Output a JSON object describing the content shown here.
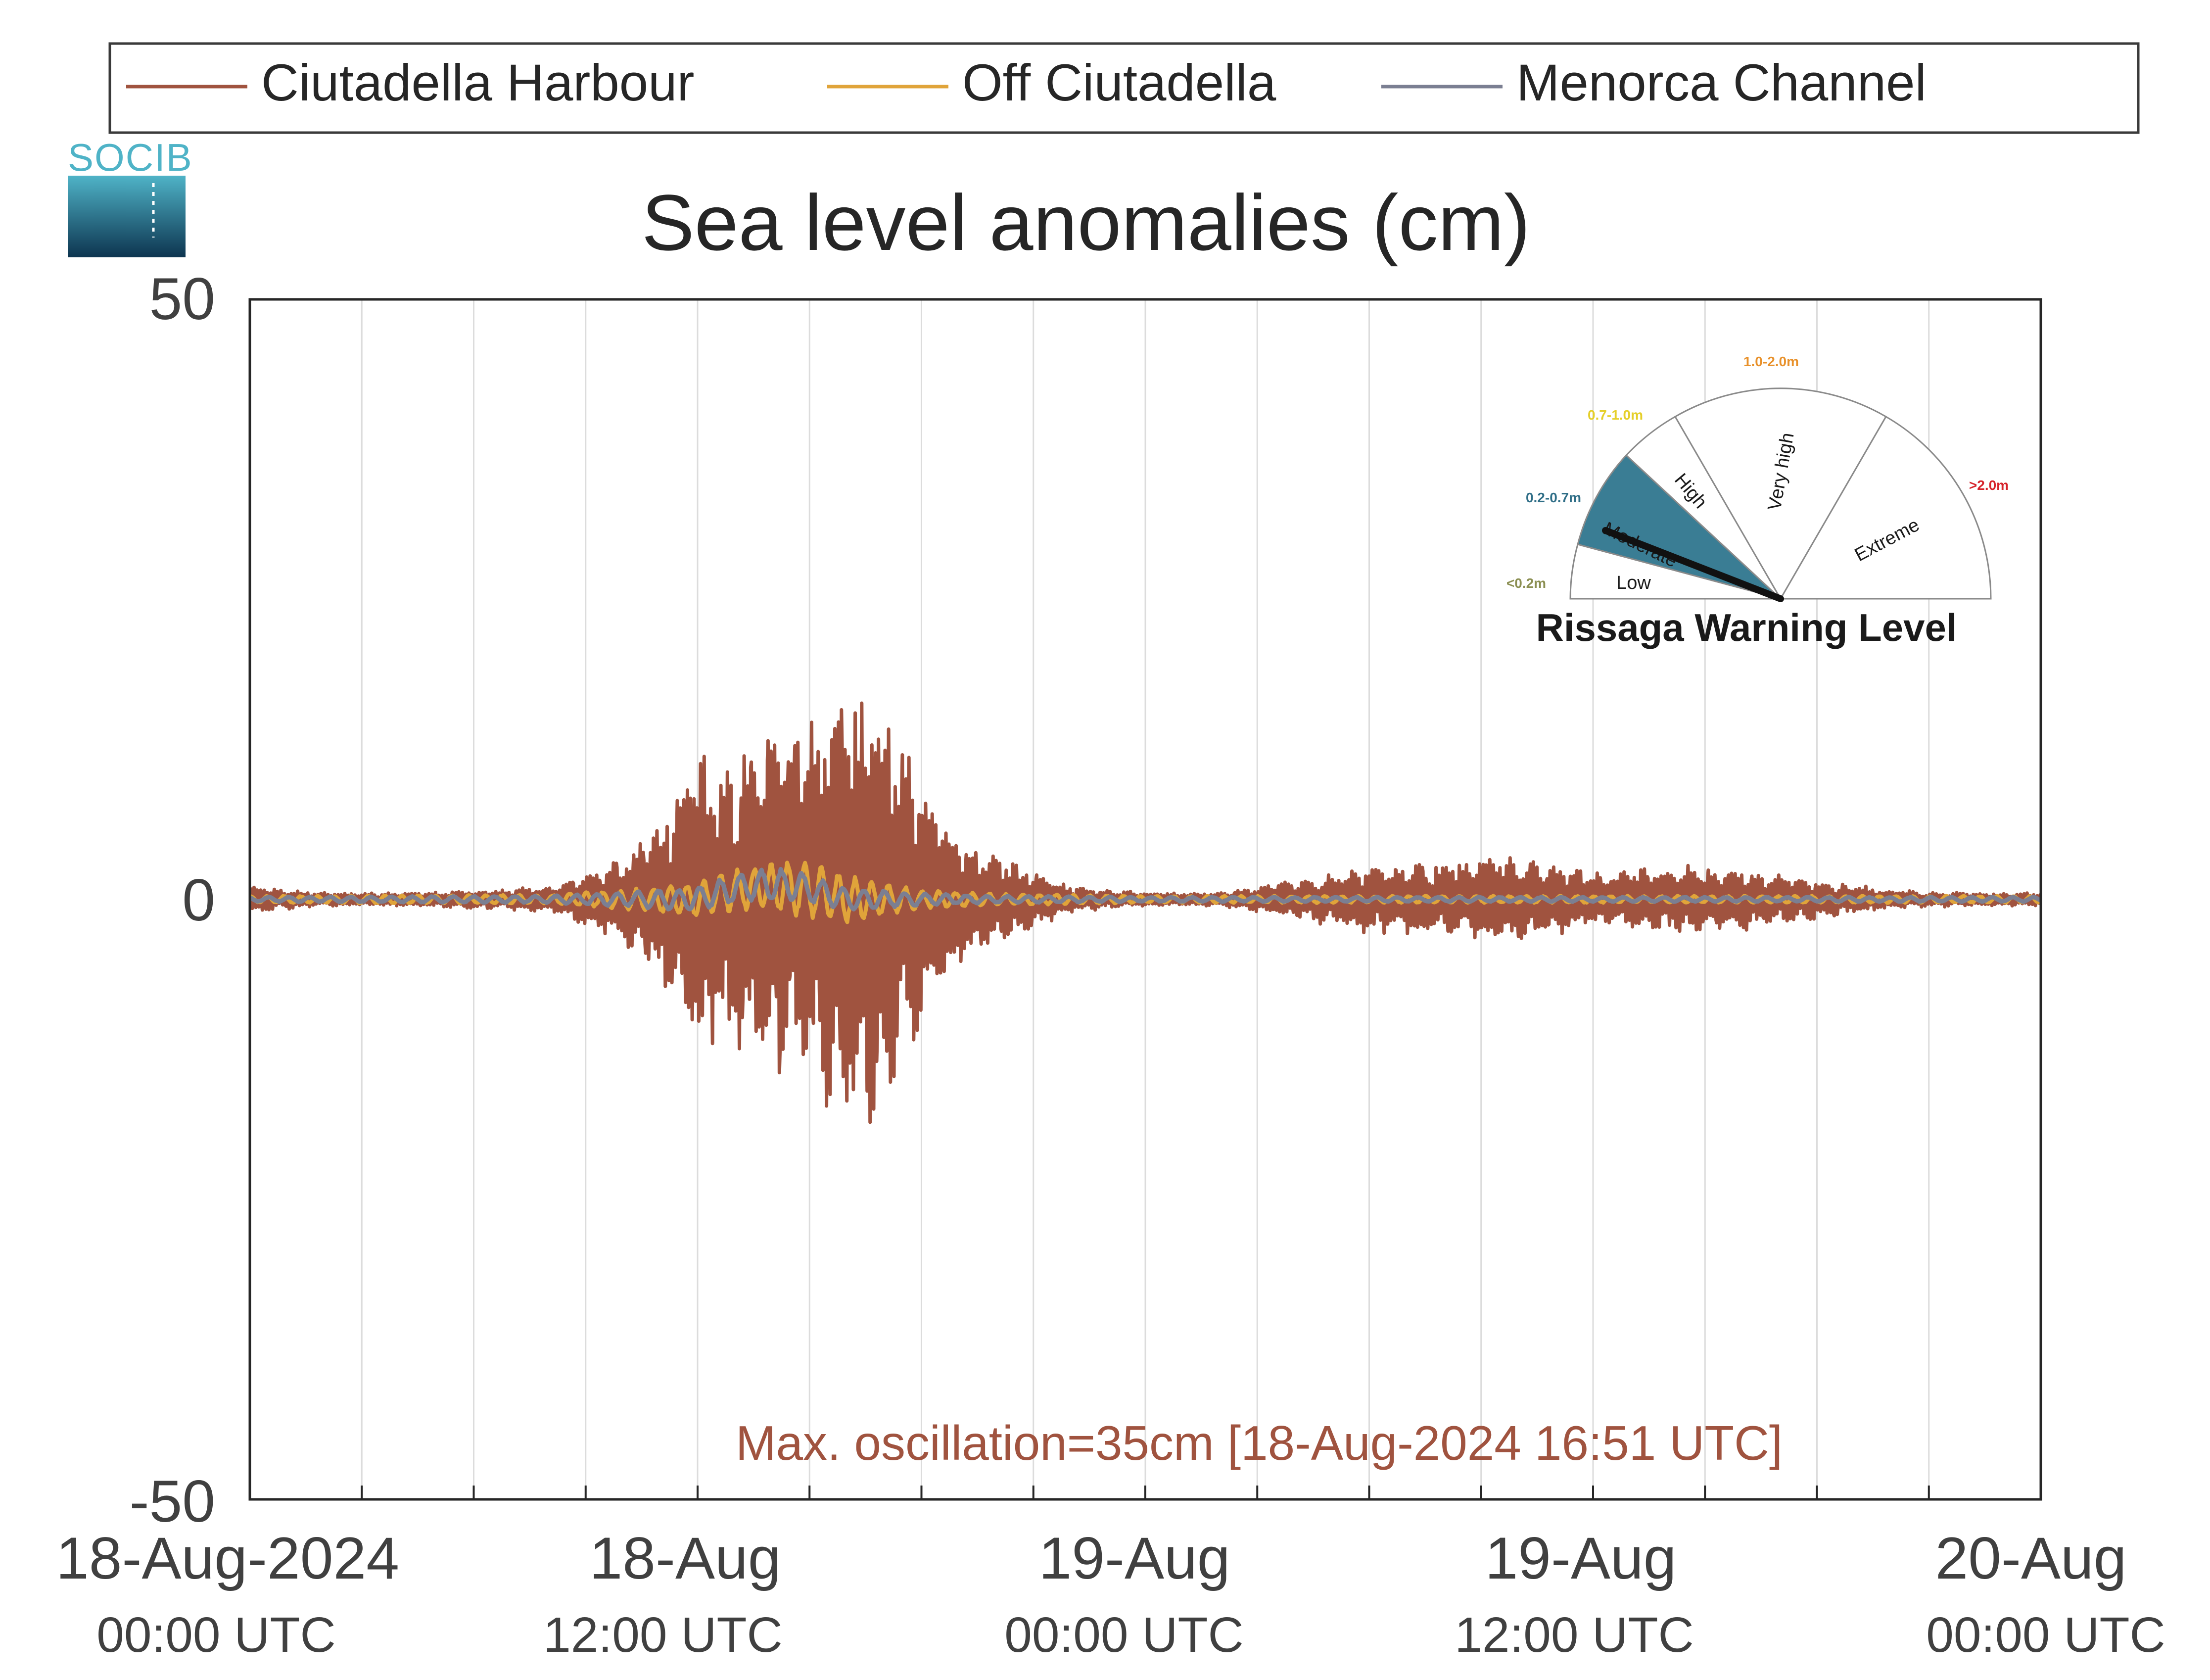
{
  "logo": {
    "text": "SOCIB"
  },
  "legend": {
    "entries": [
      {
        "name": "Ciutadella Harbour",
        "color": "#a0533f"
      },
      {
        "name": "Off Ciutadella",
        "color": "#e0a43a"
      },
      {
        "name": "Menorca Channel",
        "color": "#7b7f92"
      }
    ]
  },
  "chart_data": {
    "type": "line",
    "title": "Sea level anomalies (cm)",
    "xlabel": "",
    "ylabel": "",
    "ylim": [
      -50,
      50
    ],
    "xlim": [
      "2024-08-18T00:00",
      "2024-08-20T00:00"
    ],
    "grid": {
      "vertical": true,
      "horizontal": false
    },
    "legend_position": "top",
    "y_ticks": [
      "50",
      "0",
      "-50"
    ],
    "x_ticks": [
      {
        "date": "18-Aug-2024",
        "time": "00:00 UTC"
      },
      {
        "date": "18-Aug",
        "time": "12:00 UTC"
      },
      {
        "date": "19-Aug",
        "time": "00:00 UTC"
      },
      {
        "date": "19-Aug",
        "time": "12:00 UTC"
      },
      {
        "date": "20-Aug",
        "time": "00:00 UTC"
      }
    ],
    "series": [
      {
        "name": "Ciutadella Harbour",
        "color": "#a0533f",
        "envelope_hours": [
          0,
          2,
          4,
          6,
          8,
          9,
          10,
          11,
          12,
          13,
          14,
          15,
          16,
          17,
          18,
          19,
          20,
          22,
          24,
          26,
          28,
          30,
          32,
          34,
          36,
          38,
          40,
          42,
          44,
          46,
          48
        ],
        "envelope_cm": [
          1,
          0.5,
          0.5,
          0.7,
          1,
          2,
          3.5,
          6.5,
          12,
          11,
          15,
          14,
          18,
          16,
          10,
          5,
          3.5,
          1,
          0.5,
          0.5,
          1.5,
          2.5,
          3,
          3.5,
          2,
          2.5,
          2.5,
          1.5,
          0.7,
          0.5,
          0.5
        ]
      },
      {
        "name": "Off Ciutadella",
        "color": "#e0a43a",
        "envelope_hours": [
          0,
          8,
          10,
          12,
          14,
          15,
          16,
          18,
          20,
          24,
          48
        ],
        "envelope_cm": [
          0.3,
          0.4,
          0.8,
          1.5,
          2,
          2.5,
          2,
          0.8,
          0.5,
          0.3,
          0.3
        ]
      },
      {
        "name": "Menorca Channel",
        "color": "#7b7f92",
        "envelope_hours": [
          0,
          8,
          10,
          12,
          14,
          15,
          16,
          18,
          20,
          24,
          48
        ],
        "envelope_cm": [
          0.2,
          0.3,
          0.6,
          1,
          1.5,
          1.2,
          1,
          0.5,
          0.3,
          0.2,
          0.2
        ]
      }
    ],
    "annotation": {
      "text": "Max. oscillation=35cm [18-Aug-2024 16:51 UTC]",
      "color": "#a0533f"
    }
  },
  "gauge": {
    "title": "Rissaga Warning Level",
    "current_level": "Moderate",
    "segments": [
      {
        "label": "Low",
        "range": "<0.2m",
        "range_color": "#8b8f52",
        "fill": "#ffffff"
      },
      {
        "label": "Moderate",
        "range": "0.2-0.7m",
        "range_color": "#2f6e87",
        "fill": "#3a7d94"
      },
      {
        "label": "High",
        "range": "0.7-1.0m",
        "range_color": "#e5cf2a",
        "fill": "#ffffff"
      },
      {
        "label": "Very high",
        "range": "1.0-2.0m",
        "range_color": "#e8912b",
        "fill": "#ffffff"
      },
      {
        "label": "Extreme",
        "range": ">2.0m",
        "range_color": "#d6232a",
        "fill": "#ffffff"
      }
    ]
  }
}
